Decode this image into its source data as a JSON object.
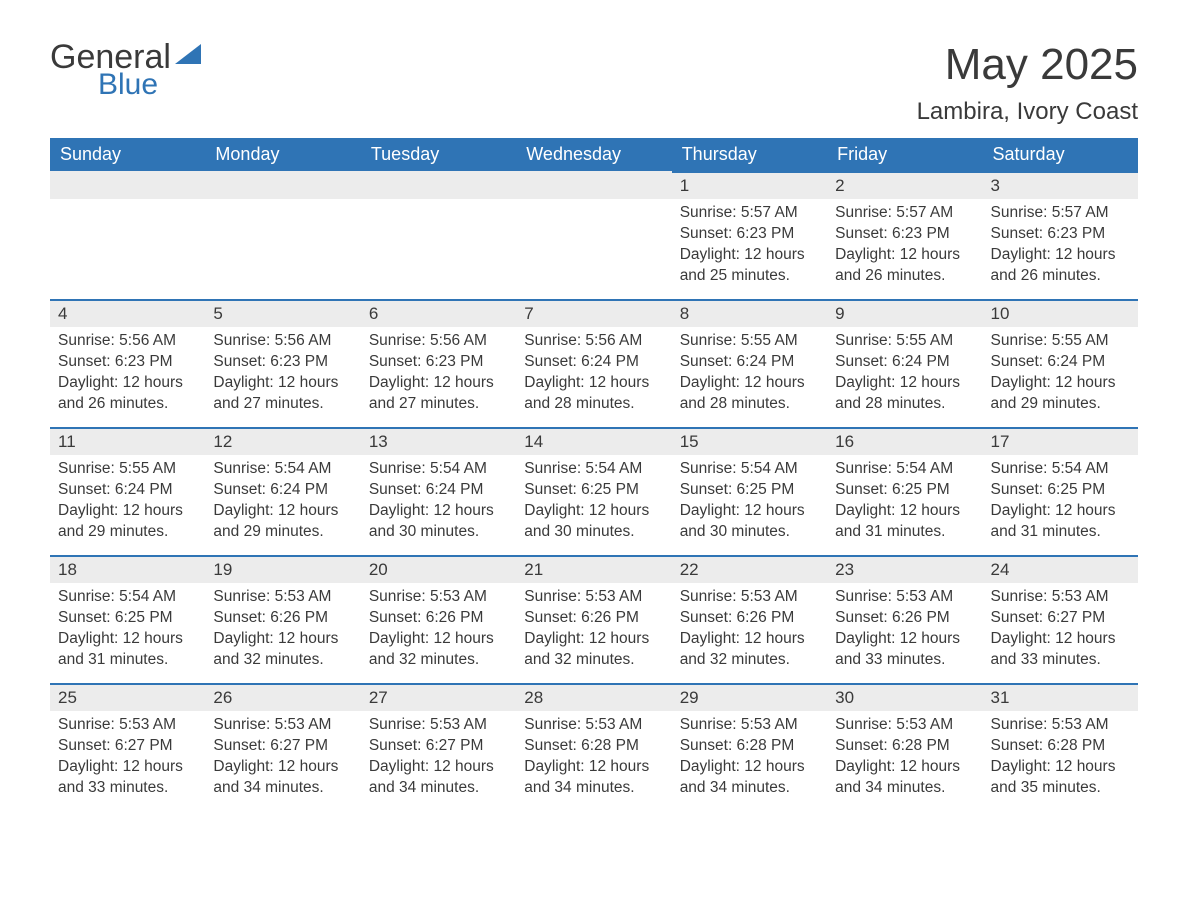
{
  "brand": {
    "word1": "General",
    "word2": "Blue"
  },
  "title": "May 2025",
  "location": "Lambira, Ivory Coast",
  "colors": {
    "header_bg": "#2f74b5",
    "header_text": "#ffffff",
    "daynum_bg": "#ececec",
    "daynum_border": "#2f74b5",
    "body_text": "#3a3a3a",
    "page_bg": "#ffffff"
  },
  "columns": [
    "Sunday",
    "Monday",
    "Tuesday",
    "Wednesday",
    "Thursday",
    "Friday",
    "Saturday"
  ],
  "weeks": [
    [
      null,
      null,
      null,
      null,
      {
        "n": "1",
        "sunrise": "5:57 AM",
        "sunset": "6:23 PM",
        "daylight": "12 hours and 25 minutes."
      },
      {
        "n": "2",
        "sunrise": "5:57 AM",
        "sunset": "6:23 PM",
        "daylight": "12 hours and 26 minutes."
      },
      {
        "n": "3",
        "sunrise": "5:57 AM",
        "sunset": "6:23 PM",
        "daylight": "12 hours and 26 minutes."
      }
    ],
    [
      {
        "n": "4",
        "sunrise": "5:56 AM",
        "sunset": "6:23 PM",
        "daylight": "12 hours and 26 minutes."
      },
      {
        "n": "5",
        "sunrise": "5:56 AM",
        "sunset": "6:23 PM",
        "daylight": "12 hours and 27 minutes."
      },
      {
        "n": "6",
        "sunrise": "5:56 AM",
        "sunset": "6:23 PM",
        "daylight": "12 hours and 27 minutes."
      },
      {
        "n": "7",
        "sunrise": "5:56 AM",
        "sunset": "6:24 PM",
        "daylight": "12 hours and 28 minutes."
      },
      {
        "n": "8",
        "sunrise": "5:55 AM",
        "sunset": "6:24 PM",
        "daylight": "12 hours and 28 minutes."
      },
      {
        "n": "9",
        "sunrise": "5:55 AM",
        "sunset": "6:24 PM",
        "daylight": "12 hours and 28 minutes."
      },
      {
        "n": "10",
        "sunrise": "5:55 AM",
        "sunset": "6:24 PM",
        "daylight": "12 hours and 29 minutes."
      }
    ],
    [
      {
        "n": "11",
        "sunrise": "5:55 AM",
        "sunset": "6:24 PM",
        "daylight": "12 hours and 29 minutes."
      },
      {
        "n": "12",
        "sunrise": "5:54 AM",
        "sunset": "6:24 PM",
        "daylight": "12 hours and 29 minutes."
      },
      {
        "n": "13",
        "sunrise": "5:54 AM",
        "sunset": "6:24 PM",
        "daylight": "12 hours and 30 minutes."
      },
      {
        "n": "14",
        "sunrise": "5:54 AM",
        "sunset": "6:25 PM",
        "daylight": "12 hours and 30 minutes."
      },
      {
        "n": "15",
        "sunrise": "5:54 AM",
        "sunset": "6:25 PM",
        "daylight": "12 hours and 30 minutes."
      },
      {
        "n": "16",
        "sunrise": "5:54 AM",
        "sunset": "6:25 PM",
        "daylight": "12 hours and 31 minutes."
      },
      {
        "n": "17",
        "sunrise": "5:54 AM",
        "sunset": "6:25 PM",
        "daylight": "12 hours and 31 minutes."
      }
    ],
    [
      {
        "n": "18",
        "sunrise": "5:54 AM",
        "sunset": "6:25 PM",
        "daylight": "12 hours and 31 minutes."
      },
      {
        "n": "19",
        "sunrise": "5:53 AM",
        "sunset": "6:26 PM",
        "daylight": "12 hours and 32 minutes."
      },
      {
        "n": "20",
        "sunrise": "5:53 AM",
        "sunset": "6:26 PM",
        "daylight": "12 hours and 32 minutes."
      },
      {
        "n": "21",
        "sunrise": "5:53 AM",
        "sunset": "6:26 PM",
        "daylight": "12 hours and 32 minutes."
      },
      {
        "n": "22",
        "sunrise": "5:53 AM",
        "sunset": "6:26 PM",
        "daylight": "12 hours and 32 minutes."
      },
      {
        "n": "23",
        "sunrise": "5:53 AM",
        "sunset": "6:26 PM",
        "daylight": "12 hours and 33 minutes."
      },
      {
        "n": "24",
        "sunrise": "5:53 AM",
        "sunset": "6:27 PM",
        "daylight": "12 hours and 33 minutes."
      }
    ],
    [
      {
        "n": "25",
        "sunrise": "5:53 AM",
        "sunset": "6:27 PM",
        "daylight": "12 hours and 33 minutes."
      },
      {
        "n": "26",
        "sunrise": "5:53 AM",
        "sunset": "6:27 PM",
        "daylight": "12 hours and 34 minutes."
      },
      {
        "n": "27",
        "sunrise": "5:53 AM",
        "sunset": "6:27 PM",
        "daylight": "12 hours and 34 minutes."
      },
      {
        "n": "28",
        "sunrise": "5:53 AM",
        "sunset": "6:28 PM",
        "daylight": "12 hours and 34 minutes."
      },
      {
        "n": "29",
        "sunrise": "5:53 AM",
        "sunset": "6:28 PM",
        "daylight": "12 hours and 34 minutes."
      },
      {
        "n": "30",
        "sunrise": "5:53 AM",
        "sunset": "6:28 PM",
        "daylight": "12 hours and 34 minutes."
      },
      {
        "n": "31",
        "sunrise": "5:53 AM",
        "sunset": "6:28 PM",
        "daylight": "12 hours and 35 minutes."
      }
    ]
  ],
  "labels": {
    "sunrise": "Sunrise:",
    "sunset": "Sunset:",
    "daylight": "Daylight:"
  }
}
